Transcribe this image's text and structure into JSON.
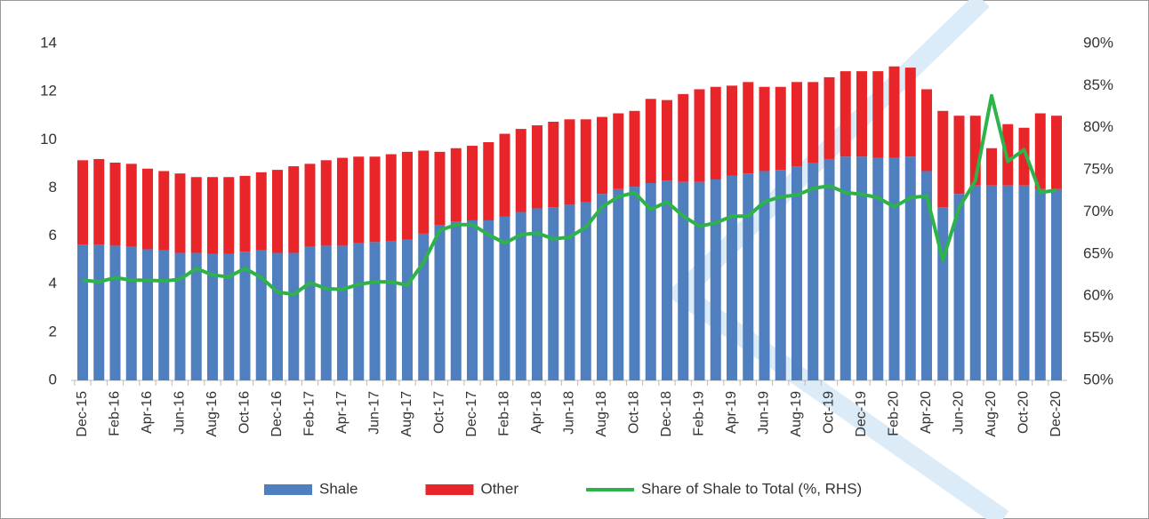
{
  "chart_data": {
    "type": "bar-line",
    "categories": [
      "Dec-15",
      null,
      "Feb-16",
      null,
      "Apr-16",
      null,
      "Jun-16",
      null,
      "Aug-16",
      null,
      "Oct-16",
      null,
      "Dec-16",
      null,
      "Feb-17",
      null,
      "Apr-17",
      null,
      "Jun-17",
      null,
      "Aug-17",
      null,
      "Oct-17",
      null,
      "Dec-17",
      null,
      "Feb-18",
      null,
      "Apr-18",
      null,
      "Jun-18",
      null,
      "Aug-18",
      null,
      "Oct-18",
      null,
      "Dec-18",
      null,
      "Feb-19",
      null,
      "Apr-19",
      null,
      "Jun-19",
      null,
      "Aug-19",
      null,
      "Oct-19",
      null,
      "Dec-19",
      null,
      "Feb-20",
      null,
      "Apr-20",
      null,
      "Jun-20",
      null,
      "Aug-20",
      null,
      "Oct-20",
      null,
      "Dec-20"
    ],
    "series": [
      {
        "name": "Shale",
        "color": "#4f7fbf",
        "values": [
          5.65,
          5.65,
          5.6,
          5.55,
          5.45,
          5.4,
          5.3,
          5.3,
          5.25,
          5.25,
          5.35,
          5.4,
          5.3,
          5.3,
          5.55,
          5.6,
          5.6,
          5.7,
          5.75,
          5.8,
          5.85,
          6.1,
          6.45,
          6.6,
          6.65,
          6.65,
          6.8,
          7.0,
          7.15,
          7.2,
          7.3,
          7.4,
          7.75,
          7.95,
          8.05,
          8.2,
          8.3,
          8.25,
          8.25,
          8.35,
          8.5,
          8.6,
          8.7,
          8.75,
          8.9,
          9.05,
          9.2,
          9.3,
          9.3,
          9.25,
          9.25,
          9.3,
          8.7,
          7.2,
          7.75,
          8.1,
          8.1,
          8.1,
          8.1,
          7.95,
          7.95
        ]
      },
      {
        "name": "Other",
        "color": "#e8262a",
        "values": [
          3.5,
          3.55,
          3.45,
          3.45,
          3.35,
          3.3,
          3.3,
          3.15,
          3.2,
          3.2,
          3.15,
          3.25,
          3.45,
          3.6,
          3.45,
          3.55,
          3.65,
          3.6,
          3.55,
          3.6,
          3.65,
          3.45,
          3.05,
          3.05,
          3.1,
          3.25,
          3.45,
          3.45,
          3.45,
          3.55,
          3.55,
          3.45,
          3.2,
          3.15,
          3.15,
          3.5,
          3.35,
          3.65,
          3.85,
          3.85,
          3.75,
          3.8,
          3.5,
          3.45,
          3.5,
          3.35,
          3.4,
          3.55,
          3.55,
          3.6,
          3.8,
          3.7,
          3.4,
          4.0,
          3.25,
          2.9,
          1.55,
          2.55,
          2.4,
          3.15,
          3.05
        ]
      },
      {
        "name": "Share of Shale to Total (%, RHS)",
        "color": "#2db34a",
        "axis": "y2",
        "values": [
          61.9,
          61.7,
          62.2,
          61.9,
          61.9,
          61.8,
          62.0,
          63.3,
          62.5,
          62.3,
          63.3,
          62.2,
          60.5,
          60.2,
          61.6,
          60.9,
          60.8,
          61.4,
          61.7,
          61.7,
          61.3,
          64.0,
          67.8,
          68.5,
          68.5,
          67.3,
          66.3,
          67.3,
          67.5,
          66.8,
          67.0,
          68.2,
          70.6,
          71.8,
          72.3,
          70.3,
          71.2,
          69.5,
          68.3,
          68.7,
          69.5,
          69.5,
          71.2,
          71.8,
          72.0,
          72.8,
          73.1,
          72.3,
          72.1,
          71.7,
          70.6,
          71.7,
          71.9,
          64.3,
          70.5,
          73.7,
          83.8,
          76.0,
          77.4,
          72.3,
          72.6
        ]
      }
    ],
    "ylim": [
      0,
      14
    ],
    "yticks": [
      0,
      2,
      4,
      6,
      8,
      10,
      12,
      14
    ],
    "y2lim": [
      50,
      90
    ],
    "y2ticks": [
      {
        "value": 50,
        "label": "50%"
      },
      {
        "value": 55,
        "label": "55%"
      },
      {
        "value": 60,
        "label": "60%"
      },
      {
        "value": 65,
        "label": "65%"
      },
      {
        "value": 70,
        "label": "70%"
      },
      {
        "value": 75,
        "label": "75%"
      },
      {
        "value": 80,
        "label": "80%"
      },
      {
        "value": 85,
        "label": "85%"
      },
      {
        "value": 90,
        "label": "90%"
      }
    ],
    "legend": "bottom"
  }
}
